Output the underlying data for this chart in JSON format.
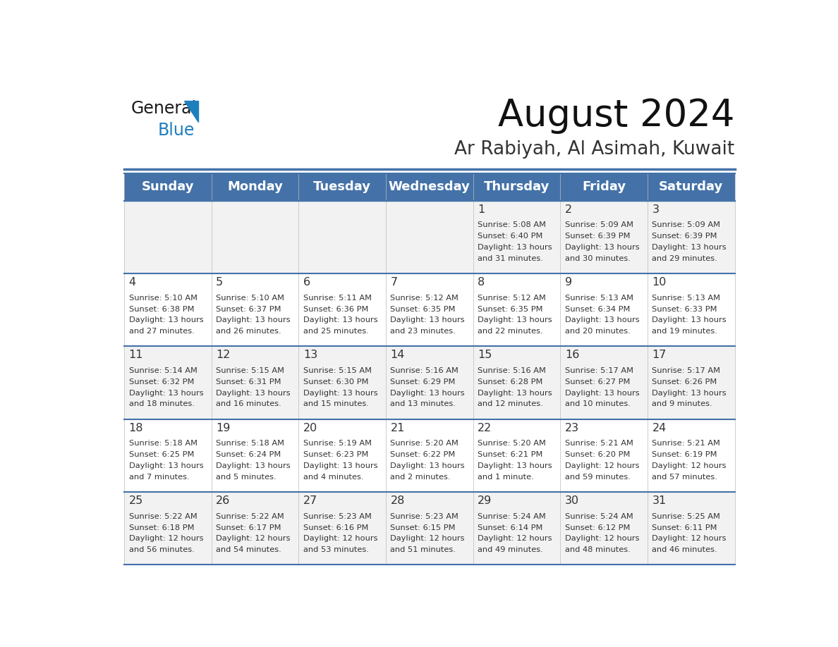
{
  "title": "August 2024",
  "subtitle": "Ar Rabiyah, Al Asimah, Kuwait",
  "days_of_week": [
    "Sunday",
    "Monday",
    "Tuesday",
    "Wednesday",
    "Thursday",
    "Friday",
    "Saturday"
  ],
  "header_bg": "#4472A8",
  "header_text": "#FFFFFF",
  "row_bg_odd": "#F2F2F2",
  "row_bg_even": "#FFFFFF",
  "day_num_color": "#333333",
  "info_color": "#333333",
  "separator_color": "#4472A8",
  "calendar_data": [
    [
      {
        "day": "",
        "info": ""
      },
      {
        "day": "",
        "info": ""
      },
      {
        "day": "",
        "info": ""
      },
      {
        "day": "",
        "info": ""
      },
      {
        "day": "1",
        "info": "Sunrise: 5:08 AM\nSunset: 6:40 PM\nDaylight: 13 hours\nand 31 minutes."
      },
      {
        "day": "2",
        "info": "Sunrise: 5:09 AM\nSunset: 6:39 PM\nDaylight: 13 hours\nand 30 minutes."
      },
      {
        "day": "3",
        "info": "Sunrise: 5:09 AM\nSunset: 6:39 PM\nDaylight: 13 hours\nand 29 minutes."
      }
    ],
    [
      {
        "day": "4",
        "info": "Sunrise: 5:10 AM\nSunset: 6:38 PM\nDaylight: 13 hours\nand 27 minutes."
      },
      {
        "day": "5",
        "info": "Sunrise: 5:10 AM\nSunset: 6:37 PM\nDaylight: 13 hours\nand 26 minutes."
      },
      {
        "day": "6",
        "info": "Sunrise: 5:11 AM\nSunset: 6:36 PM\nDaylight: 13 hours\nand 25 minutes."
      },
      {
        "day": "7",
        "info": "Sunrise: 5:12 AM\nSunset: 6:35 PM\nDaylight: 13 hours\nand 23 minutes."
      },
      {
        "day": "8",
        "info": "Sunrise: 5:12 AM\nSunset: 6:35 PM\nDaylight: 13 hours\nand 22 minutes."
      },
      {
        "day": "9",
        "info": "Sunrise: 5:13 AM\nSunset: 6:34 PM\nDaylight: 13 hours\nand 20 minutes."
      },
      {
        "day": "10",
        "info": "Sunrise: 5:13 AM\nSunset: 6:33 PM\nDaylight: 13 hours\nand 19 minutes."
      }
    ],
    [
      {
        "day": "11",
        "info": "Sunrise: 5:14 AM\nSunset: 6:32 PM\nDaylight: 13 hours\nand 18 minutes."
      },
      {
        "day": "12",
        "info": "Sunrise: 5:15 AM\nSunset: 6:31 PM\nDaylight: 13 hours\nand 16 minutes."
      },
      {
        "day": "13",
        "info": "Sunrise: 5:15 AM\nSunset: 6:30 PM\nDaylight: 13 hours\nand 15 minutes."
      },
      {
        "day": "14",
        "info": "Sunrise: 5:16 AM\nSunset: 6:29 PM\nDaylight: 13 hours\nand 13 minutes."
      },
      {
        "day": "15",
        "info": "Sunrise: 5:16 AM\nSunset: 6:28 PM\nDaylight: 13 hours\nand 12 minutes."
      },
      {
        "day": "16",
        "info": "Sunrise: 5:17 AM\nSunset: 6:27 PM\nDaylight: 13 hours\nand 10 minutes."
      },
      {
        "day": "17",
        "info": "Sunrise: 5:17 AM\nSunset: 6:26 PM\nDaylight: 13 hours\nand 9 minutes."
      }
    ],
    [
      {
        "day": "18",
        "info": "Sunrise: 5:18 AM\nSunset: 6:25 PM\nDaylight: 13 hours\nand 7 minutes."
      },
      {
        "day": "19",
        "info": "Sunrise: 5:18 AM\nSunset: 6:24 PM\nDaylight: 13 hours\nand 5 minutes."
      },
      {
        "day": "20",
        "info": "Sunrise: 5:19 AM\nSunset: 6:23 PM\nDaylight: 13 hours\nand 4 minutes."
      },
      {
        "day": "21",
        "info": "Sunrise: 5:20 AM\nSunset: 6:22 PM\nDaylight: 13 hours\nand 2 minutes."
      },
      {
        "day": "22",
        "info": "Sunrise: 5:20 AM\nSunset: 6:21 PM\nDaylight: 13 hours\nand 1 minute."
      },
      {
        "day": "23",
        "info": "Sunrise: 5:21 AM\nSunset: 6:20 PM\nDaylight: 12 hours\nand 59 minutes."
      },
      {
        "day": "24",
        "info": "Sunrise: 5:21 AM\nSunset: 6:19 PM\nDaylight: 12 hours\nand 57 minutes."
      }
    ],
    [
      {
        "day": "25",
        "info": "Sunrise: 5:22 AM\nSunset: 6:18 PM\nDaylight: 12 hours\nand 56 minutes."
      },
      {
        "day": "26",
        "info": "Sunrise: 5:22 AM\nSunset: 6:17 PM\nDaylight: 12 hours\nand 54 minutes."
      },
      {
        "day": "27",
        "info": "Sunrise: 5:23 AM\nSunset: 6:16 PM\nDaylight: 12 hours\nand 53 minutes."
      },
      {
        "day": "28",
        "info": "Sunrise: 5:23 AM\nSunset: 6:15 PM\nDaylight: 12 hours\nand 51 minutes."
      },
      {
        "day": "29",
        "info": "Sunrise: 5:24 AM\nSunset: 6:14 PM\nDaylight: 12 hours\nand 49 minutes."
      },
      {
        "day": "30",
        "info": "Sunrise: 5:24 AM\nSunset: 6:12 PM\nDaylight: 12 hours\nand 48 minutes."
      },
      {
        "day": "31",
        "info": "Sunrise: 5:25 AM\nSunset: 6:11 PM\nDaylight: 12 hours\nand 46 minutes."
      }
    ]
  ],
  "logo_general_color": "#1a1a1a",
  "logo_blue_color": "#1E7FBF",
  "logo_triangle_color": "#1E7FBF"
}
